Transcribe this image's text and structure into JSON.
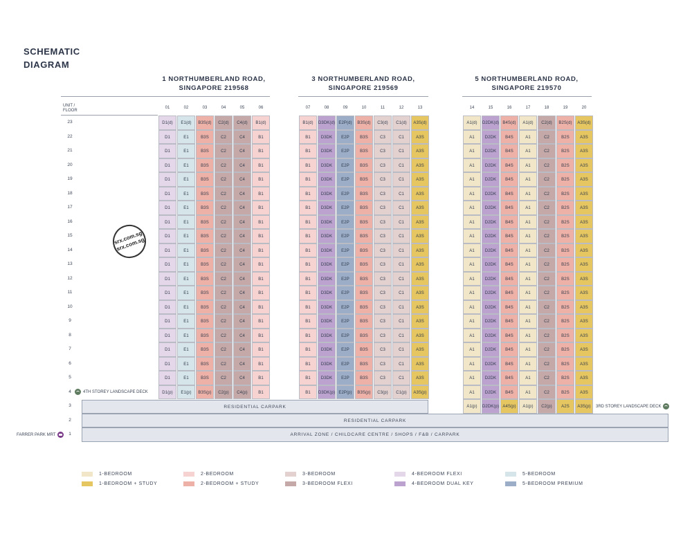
{
  "page": {
    "title": "SCHEMATIC\nDIAGRAM",
    "unit_floor_label": "UNIT /\nFLOOR"
  },
  "watermark": {
    "text": "srx.com.sg\nsrx.com.sg"
  },
  "colors": {
    "1b": "#f1e6c8",
    "1bs": "#e6c661",
    "2b": "#f6d3d1",
    "2bs": "#eeb1a7",
    "3b": "#e3d1d0",
    "3bf": "#c5a9a8",
    "4bf": "#e5d7ea",
    "4bdk": "#bca3cf",
    "5b": "#d6e5ea",
    "5bp": "#9caec7"
  },
  "buildings": [
    {
      "title": "1 NORTHUMBERLAND ROAD,\nSINGAPORE 219568",
      "units": [
        {
          "no": "01",
          "type": "D1",
          "typ": "4bf",
          "top": "D1(d)",
          "l4": "D1(p)"
        },
        {
          "no": "02",
          "type": "E1",
          "typ": "5b",
          "top": "E1(d)",
          "l4": "E1(p)"
        },
        {
          "no": "03",
          "type": "B3S",
          "typ": "2bs",
          "top": "B3S(d)",
          "l4": "B3S(p)"
        },
        {
          "no": "04",
          "type": "C2",
          "typ": "3bf",
          "top": "C2(d)",
          "l4": "C2(p)"
        },
        {
          "no": "05",
          "type": "C4",
          "typ": "3bf",
          "top": "C4(d)",
          "l4": "C4(p)"
        },
        {
          "no": "06",
          "type": "B1",
          "typ": "2b",
          "top": "B1(d)",
          "l4": "B1"
        }
      ]
    },
    {
      "title": "3 NORTHUMBERLAND ROAD,\nSINGAPORE 219569",
      "units": [
        {
          "no": "07",
          "type": "B1",
          "typ": "2b",
          "top": "B1(d)",
          "l4": "B1"
        },
        {
          "no": "08",
          "type": "D3DK",
          "typ": "4bdk",
          "top": "D3DK(d)",
          "l4": "D3DK(p)"
        },
        {
          "no": "09",
          "type": "E2P",
          "typ": "5bp",
          "top": "E2P(d)",
          "l4": "E2P(p)"
        },
        {
          "no": "10",
          "type": "B3S",
          "typ": "2bs",
          "top": "B3S(d)",
          "l4": "B3S(p)"
        },
        {
          "no": "11",
          "type": "C3",
          "typ": "3b",
          "top": "C3(d)",
          "l4": "C3(p)"
        },
        {
          "no": "12",
          "type": "C1",
          "typ": "3b",
          "top": "C1(d)",
          "l4": "C1(p)"
        },
        {
          "no": "13",
          "type": "A3S",
          "typ": "1bs",
          "top": "A3S(d)",
          "l4": "A3S(p)"
        }
      ]
    },
    {
      "title": "5 NORTHUMBERLAND ROAD,\nSINGAPORE 219570",
      "units": [
        {
          "no": "14",
          "type": "A1",
          "typ": "1b",
          "top": "A1(d)",
          "l3": "A1(p)"
        },
        {
          "no": "15",
          "type": "D2DK",
          "typ": "4bdk",
          "top": "D2DK(d)",
          "l3": "D2DK(p)"
        },
        {
          "no": "16",
          "type": "B4S",
          "typ": "2bs",
          "top": "B4S(d)",
          "l3": "A4S(p)",
          "l3typ": "1bs"
        },
        {
          "no": "17",
          "type": "A1",
          "typ": "1b",
          "top": "A1(d)",
          "l3": "A1(p)"
        },
        {
          "no": "18",
          "type": "C2",
          "typ": "3bf",
          "top": "C2(d)",
          "l3": "C2(p)"
        },
        {
          "no": "19",
          "type": "B2S",
          "typ": "2bs",
          "top": "B2S(d)",
          "l3": "A2S",
          "l3typ": "1bs"
        },
        {
          "no": "20",
          "type": "A3S",
          "typ": "1bs",
          "top": "A3S(d)",
          "l3": "A3S(p)"
        }
      ]
    }
  ],
  "floors": [
    "23",
    "22",
    "21",
    "20",
    "19",
    "18",
    "17",
    "16",
    "15",
    "14",
    "13",
    "12",
    "11",
    "10",
    "9",
    "8",
    "7",
    "6",
    "5",
    "4",
    "3",
    "2",
    "1"
  ],
  "podium": {
    "l3": "RESIDENTIAL  CARPARK",
    "l2": "RESIDENTIAL CARPARK",
    "l1": "ARRIVAL ZONE / CHILDCARE CENTRE / SHOPS / F&B / CARPARK"
  },
  "labels": {
    "deck4": "4TH STOREY LANDSCAPE DECK",
    "deck3": "3RD STOREY LANDSCAPE DECK",
    "mrt": "FARRER PARK MRT"
  },
  "legend": [
    {
      "label": "1-BEDROOM",
      "typ": "1b"
    },
    {
      "label": "1-BEDROOM + STUDY",
      "typ": "1bs"
    },
    {
      "label": "2-BEDROOM",
      "typ": "2b"
    },
    {
      "label": "2-BEDROOM + STUDY",
      "typ": "2bs"
    },
    {
      "label": "3-BEDROOM",
      "typ": "3b"
    },
    {
      "label": "3-BEDROOM FLEXI",
      "typ": "3bf"
    },
    {
      "label": "4-BEDROOM FLEXI",
      "typ": "4bf"
    },
    {
      "label": "4-BEDROOM DUAL KEY",
      "typ": "4bdk"
    },
    {
      "label": "5-BEDROOM",
      "typ": "5b"
    },
    {
      "label": "5-BEDROOM PREMIUM",
      "typ": "5bp"
    }
  ]
}
